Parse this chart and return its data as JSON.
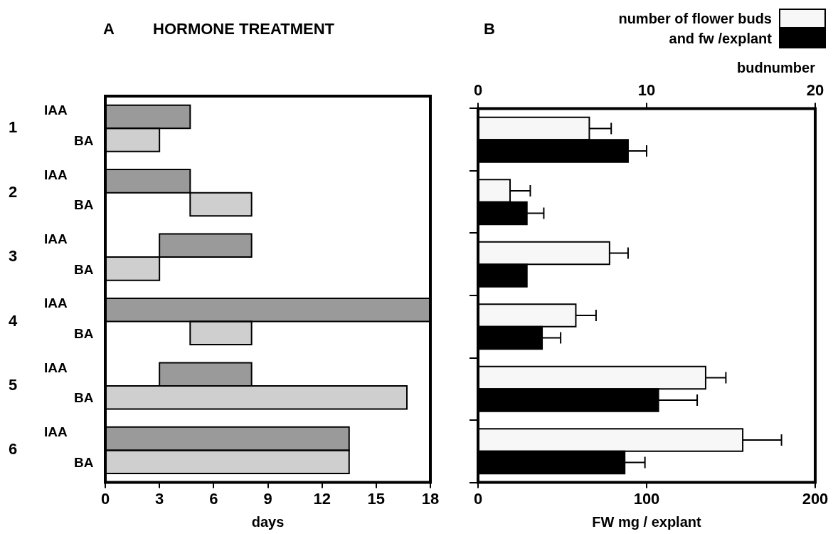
{
  "chart_data": [
    {
      "type": "bar",
      "orientation": "horizontal",
      "title": "HORMONE TREATMENT",
      "annotations": [
        "A"
      ],
      "xlabel": "days",
      "categories": [
        "1",
        "2",
        "3",
        "4",
        "5",
        "6"
      ],
      "xlim": [
        0,
        18
      ],
      "xticks": [
        0,
        3,
        6,
        9,
        12,
        15,
        18
      ],
      "grid": false,
      "legend": "left",
      "series": [
        {
          "name": "IAA",
          "color": "#9a9a9a",
          "values": [
            4.7,
            4.7,
            5.1,
            18,
            5.1,
            13.5
          ],
          "base": [
            0,
            0,
            3,
            0,
            3,
            0
          ]
        },
        {
          "name": "BA",
          "color": "#cfcfcf",
          "values": [
            3,
            3.4,
            3,
            3.4,
            16.7,
            13.5
          ],
          "base": [
            0,
            4.7,
            0,
            4.7,
            0,
            0
          ]
        }
      ]
    },
    {
      "type": "bar",
      "orientation": "horizontal",
      "annotations": [
        "B"
      ],
      "xlabel": "FW mg / explant",
      "x2label": "budnumber",
      "categories": [
        null,
        null,
        null,
        null,
        null,
        null
      ],
      "xlim": [
        0,
        200
      ],
      "xticks": [
        0,
        100,
        200
      ],
      "x2lim": [
        0,
        20
      ],
      "x2ticks": [
        0,
        10,
        20
      ],
      "grid": false,
      "legend": "top right",
      "series": [
        {
          "name": "number of flower buds",
          "color": "#f7f7f7",
          "axis": "x2",
          "values": [
            6.6,
            1.9,
            7.8,
            5.8,
            13.5,
            15.7
          ],
          "errors": [
            1.3,
            1.2,
            1.1,
            1.2,
            1.2,
            2.3
          ]
        },
        {
          "name": "and fw /explant",
          "color": "#000000",
          "values": [
            89,
            29,
            29,
            38,
            107,
            87
          ],
          "errors": [
            11,
            10,
            null,
            11,
            23,
            12
          ]
        }
      ]
    }
  ]
}
